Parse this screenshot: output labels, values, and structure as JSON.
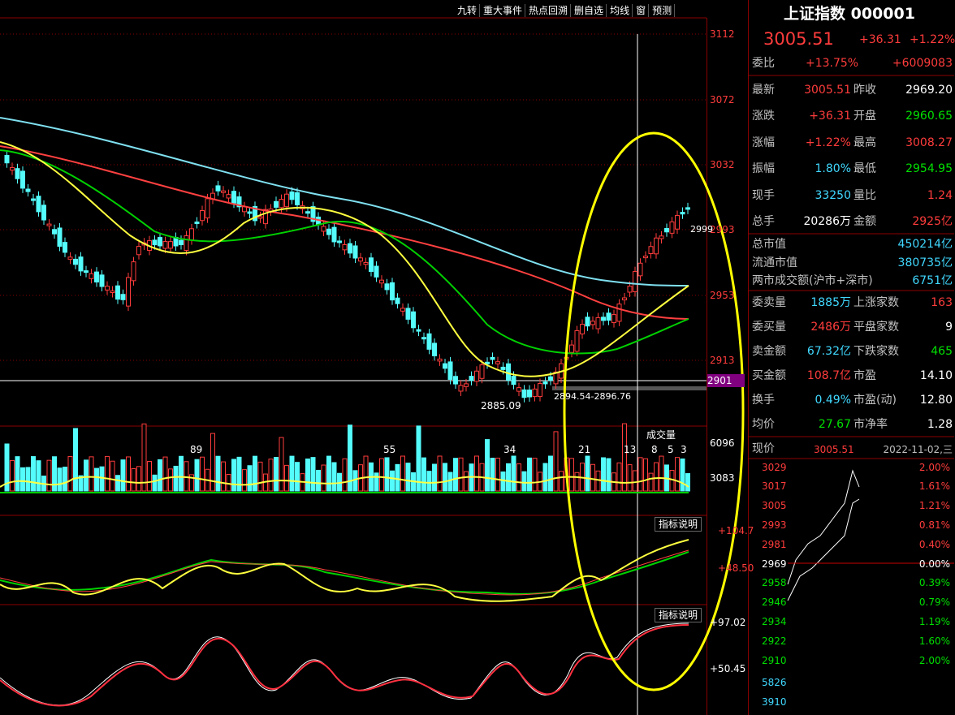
{
  "toolbar": [
    "九转",
    "重大事件",
    "热点回溯",
    "删自选",
    "均线",
    "窗",
    "预测"
  ],
  "main_chart": {
    "price_axis": [
      "3112",
      "3072",
      "3032",
      "2993",
      "2953",
      "2913"
    ],
    "current_line": "2901",
    "low_label": "2885.09",
    "range_label": "2894.54-2896.76",
    "last_label": "2999"
  },
  "volume_panel": {
    "title": "成交量",
    "axis": [
      "6096",
      "3083"
    ],
    "counts": [
      "89",
      "55",
      "34",
      "21",
      "13",
      "8",
      "5",
      "3"
    ]
  },
  "indicator_1": {
    "title": "指标说明",
    "axis": [
      "+104.7",
      "+48.50"
    ]
  },
  "indicator_2": {
    "title": "指标说明",
    "axis": [
      "+97.02",
      "+50.45"
    ]
  },
  "quote": {
    "name": "上证指数 000001",
    "price": "3005.51",
    "change": "+36.31",
    "pct": "+1.22%",
    "weibi": {
      "label": "委比",
      "pct": "+13.75%",
      "diff": "+6009083"
    },
    "pairs": [
      [
        "最新",
        "3005.51",
        "昨收",
        "2969.20"
      ],
      [
        "涨跌",
        "+36.31",
        "开盘",
        "2960.65"
      ],
      [
        "涨幅",
        "+1.22%",
        "最高",
        "3008.27"
      ],
      [
        "振幅",
        "1.80%",
        "最低",
        "2954.95"
      ],
      [
        "现手",
        "33250",
        "量比",
        "1.24"
      ],
      [
        "总手",
        "20286万",
        "金额",
        "2925亿"
      ]
    ],
    "market": [
      [
        "总市值",
        "450214亿"
      ],
      [
        "流通市值",
        "380735亿"
      ],
      [
        "两市成交额(沪市+深市)",
        "6751亿"
      ]
    ],
    "pairs2": [
      [
        "委卖量",
        "1885万",
        "上涨家数",
        "163"
      ],
      [
        "委买量",
        "2486万",
        "平盘家数",
        "9"
      ],
      [
        "卖金额",
        "67.32亿",
        "下跌家数",
        "465"
      ],
      [
        "买金额",
        "108.7亿",
        "市盈",
        "14.10"
      ],
      [
        "换手",
        "0.49%",
        "市盈(动)",
        "12.80"
      ],
      [
        "均价",
        "27.67",
        "市净率",
        "1.28"
      ]
    ]
  },
  "mini_chart": {
    "label": "现价",
    "price": "3005.51",
    "date": "2022-11-02,三",
    "left_axis": [
      "3029",
      "3017",
      "3005",
      "2993",
      "2981",
      "2969",
      "2958",
      "2946",
      "2934",
      "2922",
      "2910"
    ],
    "right_axis": [
      "2.00%",
      "1.61%",
      "1.21%",
      "0.81%",
      "0.40%",
      "0.00%",
      "0.39%",
      "0.79%",
      "1.19%",
      "1.60%",
      "2.00%"
    ],
    "volume_axis": [
      "5826",
      "3910"
    ]
  }
}
